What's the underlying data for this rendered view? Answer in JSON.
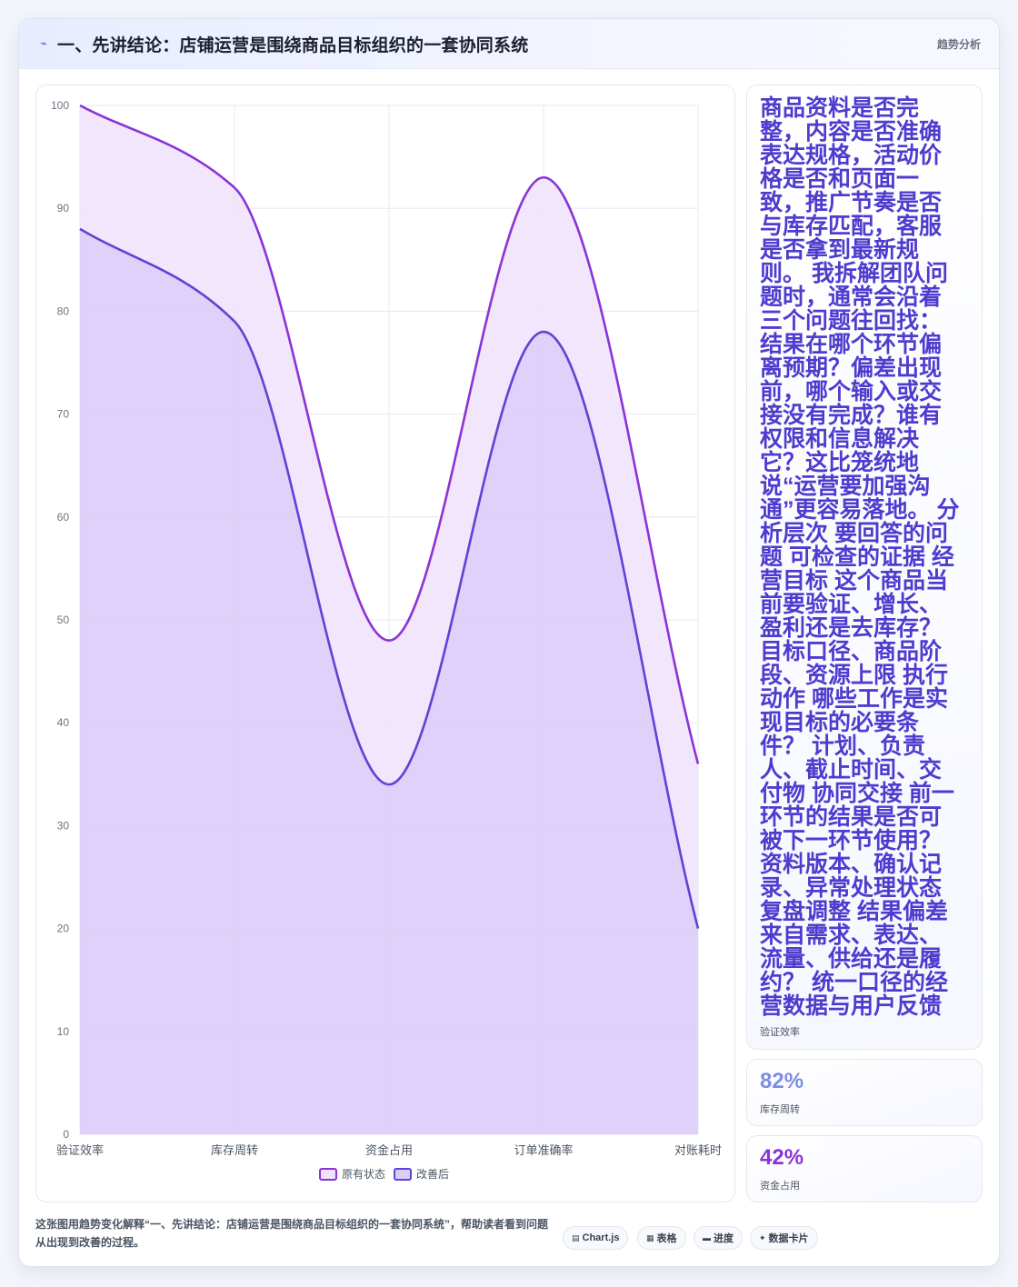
{
  "header": {
    "icon": "sparkline-icon",
    "title": "一、先讲结论：店铺运营是围绕商品目标组织的一套协同系统",
    "badge": "趋势分析"
  },
  "side": {
    "long_text": "商品资料是否完整，内容是否准确表达规格，活动价格是否和页面一致，推广节奏是否与库存匹配，客服是否拿到最新规则。 我拆解团队问题时，通常会沿着三个问题往回找：结果在哪个环节偏离预期？偏差出现前，哪个输入或交接没有完成？谁有权限和信息解决它？这比笼统地说“运营要加强沟通”更容易落地。 分析层次 要回答的问题 可检查的证据 经营目标 这个商品当前要验证、增长、盈利还是去库存？ 目标口径、商品阶段、资源上限 执行动作 哪些工作是实现目标的必要条件？ 计划、负责人、截止时间、交付物 协同交接 前一环节的结果是否可被下一环节使用？ 资料版本、确认记录、异常处理状态 复盘调整 结果偏差来自需求、表达、流量、供给还是履约？ 统一口径的经营数据与用户反馈",
    "long_label": "验证效率",
    "stat1": {
      "value": "82%",
      "label": "库存周转",
      "color": "#7b8ee6"
    },
    "stat2": {
      "value": "42%",
      "label": "资金占用",
      "color": "#8a34d6"
    }
  },
  "footer": {
    "text": "这张图用趋势变化解释“一、先讲结论：店铺运营是围绕商品目标组织的一套协同系统”，帮助读者看到问题从出现到改善的过程。",
    "chips": [
      {
        "icon": "table-icon",
        "glyph": "▤",
        "label": "Chart.js"
      },
      {
        "icon": "grid-icon",
        "glyph": "▦",
        "label": "表格"
      },
      {
        "icon": "progress-icon",
        "glyph": "▬",
        "label": "进度"
      },
      {
        "icon": "star-icon",
        "glyph": "✦",
        "label": "数据卡片"
      }
    ]
  },
  "chart_data": {
    "type": "area",
    "categories": [
      "验证效率",
      "库存周转",
      "资金占用",
      "订单准确率",
      "对账耗时"
    ],
    "series": [
      {
        "name": "原有状态",
        "values": [
          100,
          92,
          48,
          93,
          36
        ],
        "color": "#8a34d6",
        "fill": "#efe2fa"
      },
      {
        "name": "改善后",
        "values": [
          88,
          79,
          34,
          78,
          20
        ],
        "color": "#5b45d4",
        "fill": "#dcccf8"
      }
    ],
    "ylim": [
      0,
      100
    ],
    "yticks": [
      0,
      10,
      20,
      30,
      40,
      50,
      60,
      70,
      80,
      90,
      100
    ],
    "grid": true,
    "legend": "bottom-center"
  }
}
